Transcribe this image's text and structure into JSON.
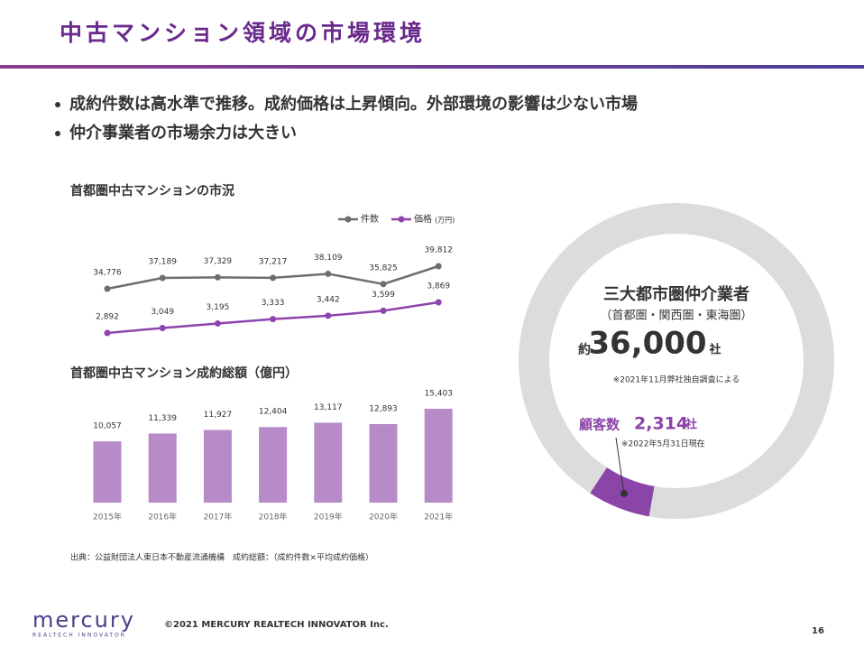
{
  "header": {
    "title": "中古マンション領域の市場環境"
  },
  "bullets": [
    "成約件数は高水準で推移。成約価格は上昇傾向。外部環境の影響は少ない市場",
    "仲介事業者の市場余力は大きい"
  ],
  "chart_data": [
    {
      "type": "line",
      "title": "首都圏中古マンションの市況",
      "categories": [
        "2015年",
        "2016年",
        "2017年",
        "2018年",
        "2019年",
        "2020年",
        "2021年"
      ],
      "series": [
        {
          "name": "件数",
          "color": "#6e6e6e",
          "values": [
            34776,
            37189,
            37329,
            37217,
            38109,
            35825,
            39812
          ],
          "value_labels": [
            "34,776",
            "37,189",
            "37,329",
            "37,217",
            "38,109",
            "35,825",
            "39,812"
          ]
        },
        {
          "name": "価格",
          "unit": "(万円)",
          "color": "#8e44ad",
          "values": [
            2892,
            3049,
            3195,
            3333,
            3442,
            3599,
            3869
          ],
          "value_labels": [
            "2,892",
            "3,049",
            "3,195",
            "3,333",
            "3,442",
            "3,599",
            "3,869"
          ]
        }
      ]
    },
    {
      "type": "bar",
      "title": "首都圏中古マンション成約総額（億円）",
      "color": "#b68bc8",
      "categories": [
        "2015年",
        "2016年",
        "2017年",
        "2018年",
        "2019年",
        "2020年",
        "2021年"
      ],
      "values": [
        10057,
        11339,
        11927,
        12404,
        13117,
        12893,
        15403
      ],
      "value_labels": [
        "10,057",
        "11,339",
        "11,927",
        "12,404",
        "13,117",
        "12,893",
        "15,403"
      ]
    },
    {
      "type": "donut",
      "title": "三大都市圏仲介業者",
      "subtitle": "（首都圏・関西圏・東海圏）",
      "names": [
        "",
        "顧客数"
      ],
      "colors": [
        "#dcdcdc",
        "#8b44a8"
      ],
      "values": [
        36000,
        2314
      ],
      "value_labels": [
        "36,000",
        "2,314"
      ],
      "prefix": "約",
      "unit": "社",
      "notes": [
        "※2021年11月弊社独自調査による",
        "※2022年5月31日現在"
      ]
    }
  ],
  "source": "出典：公益財団法人東日本不動産流通機構　成約総額：（成約件数×平均成約価格）",
  "footer": {
    "logo": "mercury",
    "logo_sub": "REALTECH INNOVATOR",
    "copyright": "©2021 MERCURY REALTECH INNOVATOR Inc.",
    "page": "16"
  }
}
